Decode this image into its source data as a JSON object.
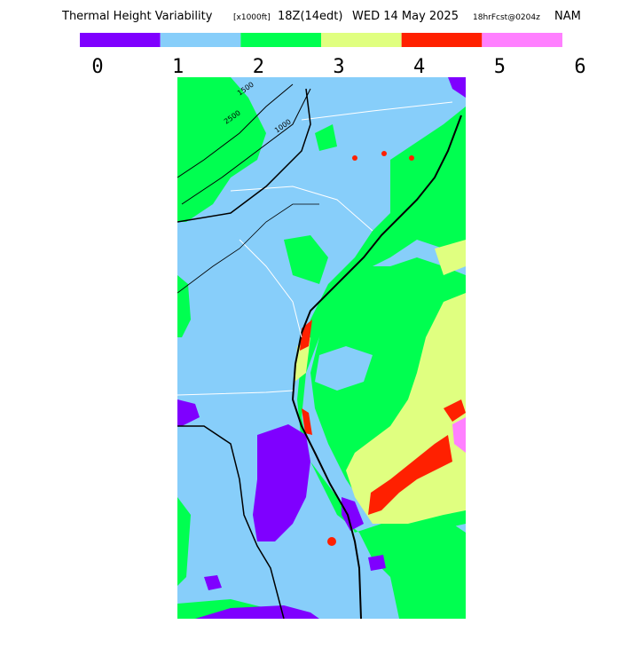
{
  "header": {
    "title": "Thermal Height Variability",
    "units": "[x1000ft]",
    "valid_time": "18Z(14edt)",
    "date": "WED 14 May 2025",
    "forecast": "18hrFcst@0204z",
    "model": "NAM"
  },
  "legend": {
    "colors": [
      "#7f00ff",
      "#87cefa",
      "#00ff50",
      "#e0ff80",
      "#ff2000",
      "#ff80ff"
    ],
    "labels": [
      "0",
      "1",
      "2",
      "3",
      "4",
      "5",
      "6"
    ]
  },
  "map": {
    "contour_labels": [
      "1500",
      "2500",
      "1000"
    ]
  }
}
